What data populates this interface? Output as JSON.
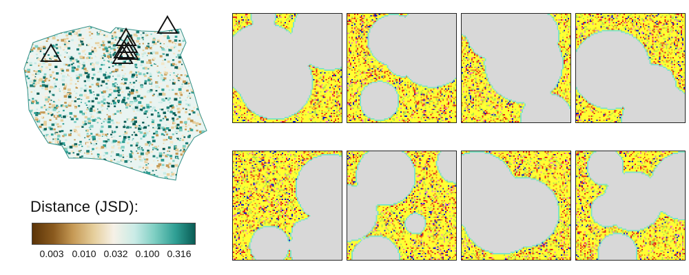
{
  "legend": {
    "title": "Distance (JSD):",
    "ticks": [
      "0.003",
      "0.010",
      "0.032",
      "0.100",
      "0.316"
    ],
    "scale": "log",
    "colors": [
      "#5b3408",
      "#8a5a1e",
      "#c69a56",
      "#e6cf9d",
      "#f6f1e7",
      "#c9ebe6",
      "#7fcfc3",
      "#2f9f94",
      "#0a5c55"
    ]
  },
  "map": {
    "markers": {
      "shape": "triangle",
      "count": 7
    }
  },
  "tiles": {
    "rows": 2,
    "cols": 4,
    "palette": {
      "background": "#d8d8d8",
      "dominant": "#ffff33",
      "edge": "#7fe3c4",
      "accent_green": "#b3e34d",
      "accent_orange": "#f08a24",
      "accent_red": "#e3251a",
      "accent_blue": "#0a17c6",
      "accent_pink": "#f07fc0"
    }
  }
}
